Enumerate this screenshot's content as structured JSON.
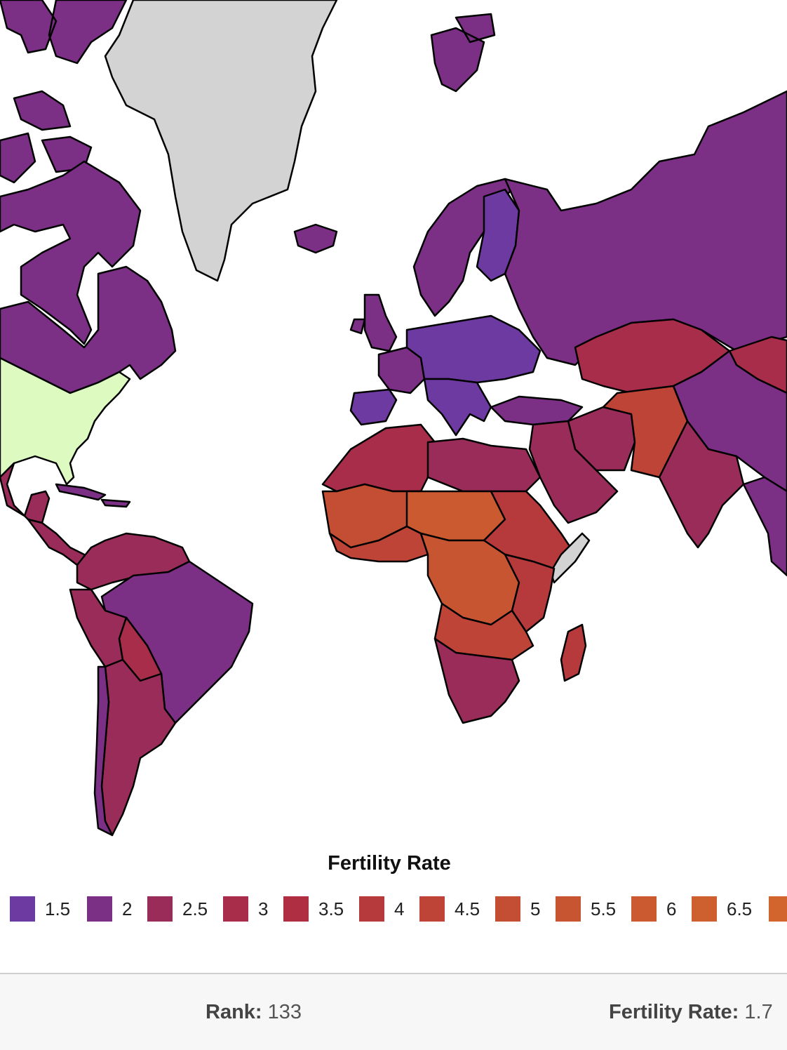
{
  "colors": {
    "1.5": "#6c3aa0",
    "2": "#7b2f85",
    "2.5": "#9a2c5a",
    "3": "#a82d4a",
    "3.5": "#b02e42",
    "4": "#b63a3c",
    "4.5": "#bd4437",
    "5": "#c44e34",
    "5.5": "#c85532",
    "6": "#cb5a30",
    "6.5": "#ce5f2f",
    "7": "#d2652d",
    "usa": "#ddfac0",
    "nodata": "#d3d3d3"
  },
  "legend": {
    "title": "Fertility Rate",
    "items": [
      {
        "label": "1.5",
        "color": "#6c3aa0"
      },
      {
        "label": "2",
        "color": "#7b2f85"
      },
      {
        "label": "2.5",
        "color": "#9a2c5a"
      },
      {
        "label": "3",
        "color": "#a82d4a"
      },
      {
        "label": "3.5",
        "color": "#b02e42"
      },
      {
        "label": "4",
        "color": "#b63a3c"
      },
      {
        "label": "4.5",
        "color": "#bd4437"
      },
      {
        "label": "5",
        "color": "#c44e34"
      },
      {
        "label": "5.5",
        "color": "#c85532"
      },
      {
        "label": "6",
        "color": "#cb5a30"
      },
      {
        "label": "6.5",
        "color": "#ce5f2f"
      },
      {
        "label": "",
        "color": "#d2652d"
      }
    ]
  },
  "stats": {
    "rank_label": "Rank:",
    "rank_value": "133",
    "rate_label": "Fertility Rate:",
    "rate_value": "1.7"
  }
}
